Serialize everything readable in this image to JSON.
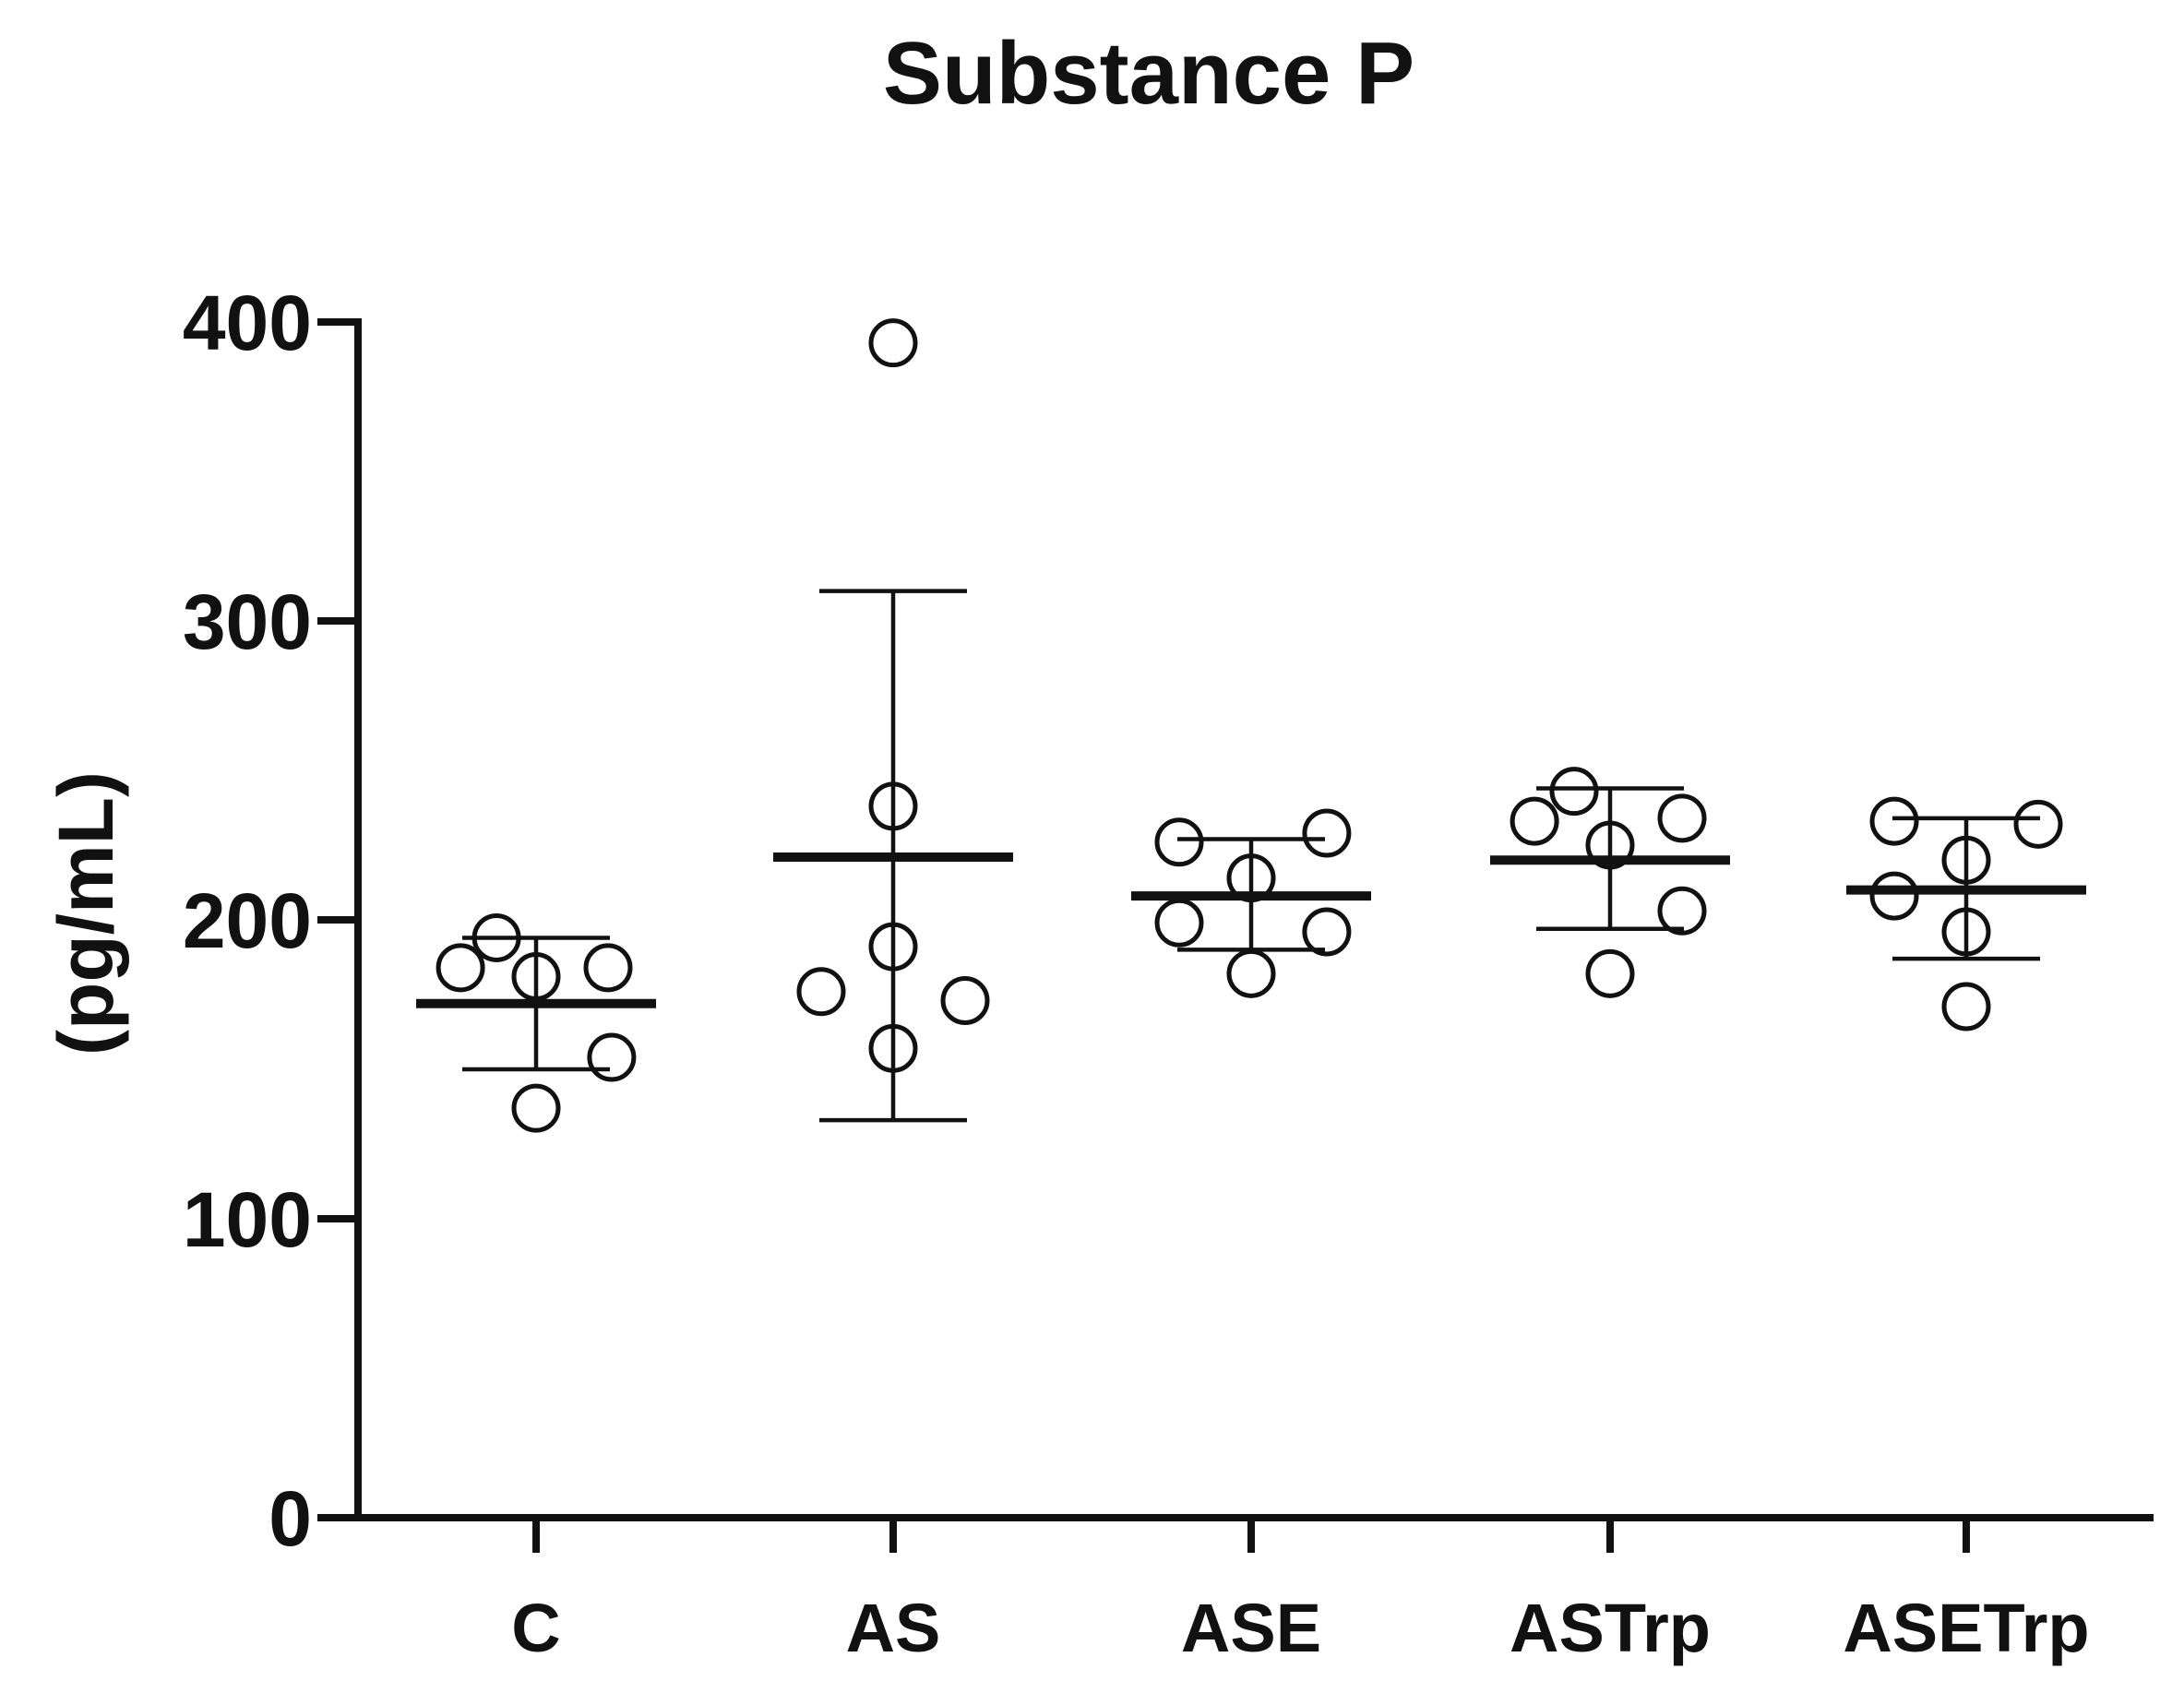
{
  "chart_data": {
    "type": "scatter",
    "title": "Substance P",
    "xlabel": "",
    "ylabel": "(pg/mL)",
    "ylim": [
      0,
      400
    ],
    "yticks": [
      0,
      100,
      200,
      300,
      400
    ],
    "grid": false,
    "legend": "none",
    "categories": [
      "C",
      "AS",
      "ASE",
      "ASTrp",
      "ASETrp"
    ],
    "series": [
      {
        "name": "C",
        "points": [
          {
            "offset": -0.21,
            "value": 184
          },
          {
            "offset": -0.11,
            "value": 194
          },
          {
            "offset": 0.0,
            "value": 181
          },
          {
            "offset": 0.2,
            "value": 184
          },
          {
            "offset": 0.21,
            "value": 154
          },
          {
            "offset": 0.0,
            "value": 137
          }
        ],
        "mean": 172,
        "error_upper": 194,
        "error_lower": 150
      },
      {
        "name": "AS",
        "points": [
          {
            "offset": 0.0,
            "value": 393
          },
          {
            "offset": 0.0,
            "value": 238
          },
          {
            "offset": 0.0,
            "value": 191
          },
          {
            "offset": -0.2,
            "value": 176
          },
          {
            "offset": 0.2,
            "value": 173
          },
          {
            "offset": 0.0,
            "value": 157
          }
        ],
        "mean": 221,
        "error_upper": 310,
        "error_lower": 133
      },
      {
        "name": "ASE",
        "points": [
          {
            "offset": -0.2,
            "value": 226
          },
          {
            "offset": 0.21,
            "value": 229
          },
          {
            "offset": 0.0,
            "value": 214
          },
          {
            "offset": -0.2,
            "value": 199
          },
          {
            "offset": 0.21,
            "value": 196
          },
          {
            "offset": 0.0,
            "value": 182
          }
        ],
        "mean": 208,
        "error_upper": 227,
        "error_lower": 190
      },
      {
        "name": "ASTrp",
        "points": [
          {
            "offset": -0.1,
            "value": 243
          },
          {
            "offset": -0.21,
            "value": 233
          },
          {
            "offset": 0.2,
            "value": 234
          },
          {
            "offset": 0.0,
            "value": 225
          },
          {
            "offset": 0.2,
            "value": 203
          },
          {
            "offset": 0.0,
            "value": 182
          }
        ],
        "mean": 220,
        "error_upper": 244,
        "error_lower": 197
      },
      {
        "name": "ASETrp",
        "points": [
          {
            "offset": -0.2,
            "value": 233
          },
          {
            "offset": 0.2,
            "value": 232
          },
          {
            "offset": 0.0,
            "value": 220
          },
          {
            "offset": -0.2,
            "value": 208
          },
          {
            "offset": 0.0,
            "value": 196
          },
          {
            "offset": 0.0,
            "value": 171
          }
        ],
        "mean": 210,
        "error_upper": 234,
        "error_lower": 187
      }
    ]
  }
}
